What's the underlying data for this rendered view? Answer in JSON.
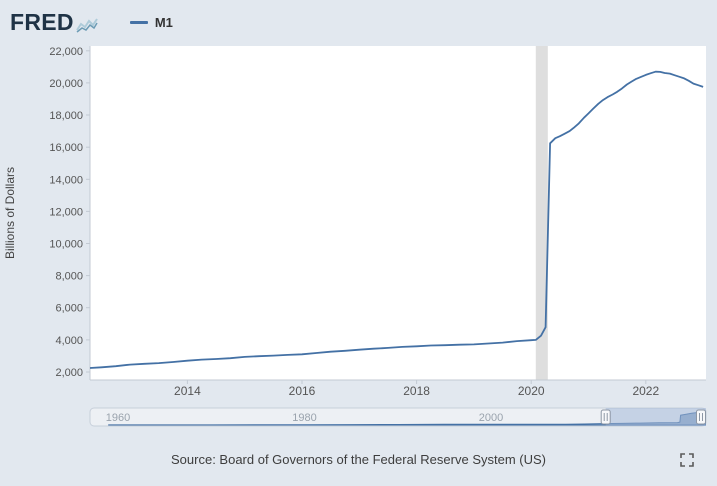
{
  "header": {
    "logo_text": "FRED",
    "logo_icon": "fred-sparkline-icon",
    "legend": {
      "series_label": "M1",
      "swatch_color": "#4471a5"
    }
  },
  "footer": {
    "source_text": "Source: Board of Governors of the Federal Reserve System (US)",
    "fullscreen_icon": "fullscreen-icon"
  },
  "colors": {
    "background": "#e2e8ef",
    "plot_background": "#ffffff",
    "line": "#4471a5",
    "recession_band": "#dedede",
    "axis": "#c3cad3",
    "tick_text": "#555555",
    "slider_track": "#edf0f4",
    "slider_border": "#c7cfda",
    "slider_selection": "#9db4d6",
    "slider_label": "#9aa3ad",
    "logo_text": "#1f3346",
    "footer_text": "#3d3d3d"
  },
  "chart_data": {
    "type": "line",
    "title": "M1",
    "xlabel": "",
    "ylabel": "Billions of Dollars",
    "legend_entries": [
      "M1"
    ],
    "legend_position": "top-left",
    "grid": false,
    "xlim": [
      2012.3,
      2023.05
    ],
    "ylim": [
      1500,
      22300
    ],
    "x_ticks": [
      2014,
      2016,
      2018,
      2020,
      2022
    ],
    "y_ticks": [
      2000,
      4000,
      6000,
      8000,
      10000,
      12000,
      14000,
      16000,
      18000,
      20000,
      22000
    ],
    "recession_bands": [
      [
        2020.08,
        2020.29
      ]
    ],
    "series": [
      {
        "name": "M1",
        "units": "Billions of Dollars",
        "points": [
          [
            2012.3,
            2250
          ],
          [
            2012.5,
            2290
          ],
          [
            2012.75,
            2360
          ],
          [
            2013.0,
            2460
          ],
          [
            2013.25,
            2510
          ],
          [
            2013.5,
            2550
          ],
          [
            2013.75,
            2620
          ],
          [
            2014.0,
            2700
          ],
          [
            2014.25,
            2770
          ],
          [
            2014.5,
            2810
          ],
          [
            2014.75,
            2860
          ],
          [
            2015.0,
            2940
          ],
          [
            2015.25,
            2980
          ],
          [
            2015.5,
            3020
          ],
          [
            2015.75,
            3060
          ],
          [
            2016.0,
            3100
          ],
          [
            2016.25,
            3180
          ],
          [
            2016.5,
            3260
          ],
          [
            2016.75,
            3320
          ],
          [
            2017.0,
            3390
          ],
          [
            2017.25,
            3450
          ],
          [
            2017.5,
            3500
          ],
          [
            2017.75,
            3560
          ],
          [
            2018.0,
            3600
          ],
          [
            2018.25,
            3650
          ],
          [
            2018.5,
            3670
          ],
          [
            2018.75,
            3700
          ],
          [
            2019.0,
            3720
          ],
          [
            2019.25,
            3770
          ],
          [
            2019.5,
            3830
          ],
          [
            2019.75,
            3920
          ],
          [
            2020.0,
            3980
          ],
          [
            2020.08,
            4000
          ],
          [
            2020.17,
            4260
          ],
          [
            2020.25,
            4790
          ],
          [
            2020.33,
            16240
          ],
          [
            2020.42,
            16560
          ],
          [
            2020.5,
            16680
          ],
          [
            2020.58,
            16830
          ],
          [
            2020.67,
            17000
          ],
          [
            2020.75,
            17230
          ],
          [
            2020.83,
            17480
          ],
          [
            2020.92,
            17830
          ],
          [
            2021.0,
            18100
          ],
          [
            2021.08,
            18390
          ],
          [
            2021.17,
            18700
          ],
          [
            2021.25,
            18930
          ],
          [
            2021.33,
            19110
          ],
          [
            2021.42,
            19280
          ],
          [
            2021.5,
            19450
          ],
          [
            2021.58,
            19650
          ],
          [
            2021.67,
            19900
          ],
          [
            2021.75,
            20080
          ],
          [
            2021.83,
            20250
          ],
          [
            2021.92,
            20380
          ],
          [
            2022.0,
            20500
          ],
          [
            2022.08,
            20600
          ],
          [
            2022.17,
            20700
          ],
          [
            2022.25,
            20690
          ],
          [
            2022.33,
            20620
          ],
          [
            2022.42,
            20580
          ],
          [
            2022.5,
            20480
          ],
          [
            2022.58,
            20390
          ],
          [
            2022.67,
            20280
          ],
          [
            2022.75,
            20130
          ],
          [
            2022.83,
            19960
          ],
          [
            2022.92,
            19850
          ],
          [
            2023.0,
            19750
          ]
        ]
      }
    ],
    "overview": {
      "xlim": [
        1957,
        2023.05
      ],
      "x_labels": [
        1960,
        1980,
        2000
      ],
      "selection": [
        2012.3,
        2023.05
      ],
      "points": [
        [
          1959,
          140
        ],
        [
          1965,
          168
        ],
        [
          1970,
          214
        ],
        [
          1975,
          288
        ],
        [
          1980,
          396
        ],
        [
          1985,
          620
        ],
        [
          1990,
          810
        ],
        [
          1995,
          1127
        ],
        [
          2000,
          1088
        ],
        [
          2005,
          1360
        ],
        [
          2008,
          1400
        ],
        [
          2010,
          1700
        ],
        [
          2012,
          2250
        ],
        [
          2014,
          2700
        ],
        [
          2016,
          3100
        ],
        [
          2018,
          3600
        ],
        [
          2020.0,
          3980
        ],
        [
          2020.25,
          4790
        ],
        [
          2020.33,
          16240
        ],
        [
          2020.92,
          17830
        ],
        [
          2021.5,
          19450
        ],
        [
          2022.17,
          20700
        ],
        [
          2022.6,
          20450
        ],
        [
          2023.0,
          19750
        ]
      ]
    }
  }
}
